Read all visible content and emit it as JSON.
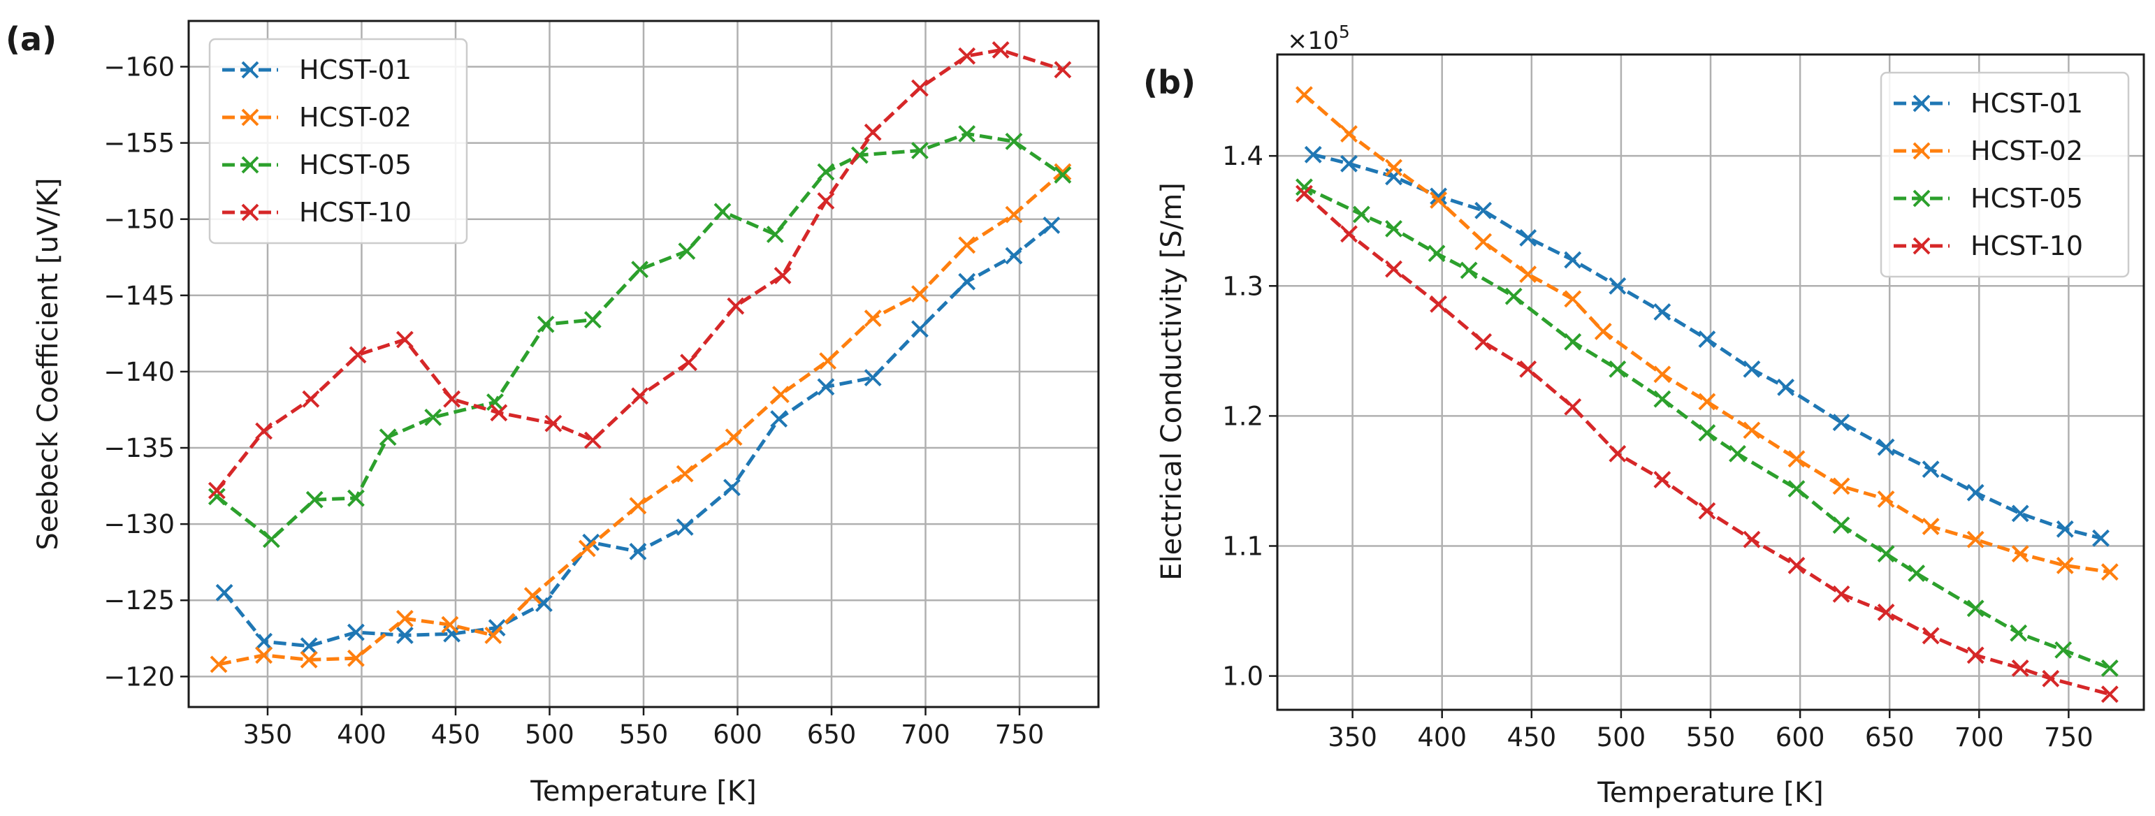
{
  "chart_data": [
    {
      "type": "line",
      "panel_label": "(a)",
      "xlabel": "Temperature [K]",
      "ylabel": "Seebeck Coefficient [uV/K]",
      "xlim": [
        308,
        792
      ],
      "ylim": [
        -118,
        -163
      ],
      "y_inverted": true,
      "xticks": [
        350,
        400,
        450,
        500,
        550,
        600,
        650,
        700,
        750
      ],
      "xtick_labels": [
        "350",
        "400",
        "450",
        "500",
        "550",
        "600",
        "650",
        "700",
        "750"
      ],
      "yticks": [
        -120,
        -125,
        -130,
        -135,
        -140,
        -145,
        -150,
        -155,
        -160
      ],
      "ytick_labels": [
        "−120",
        "−125",
        "−130",
        "−135",
        "−140",
        "−145",
        "−150",
        "−155",
        "−160"
      ],
      "grid": true,
      "legend_position": "top-left",
      "series": [
        {
          "name": "HCST-01",
          "color": "#1f77b4",
          "x": [
            327,
            348,
            372,
            397,
            423,
            448,
            472,
            497,
            522,
            547,
            572,
            597,
            622,
            647,
            672,
            697,
            722,
            747,
            767
          ],
          "y": [
            -125.5,
            -122.3,
            -122.0,
            -122.9,
            -122.7,
            -122.8,
            -123.2,
            -124.8,
            -128.8,
            -128.2,
            -129.8,
            -132.4,
            -136.9,
            -139.0,
            -139.6,
            -142.8,
            -145.9,
            -147.6,
            -149.6
          ]
        },
        {
          "name": "HCST-02",
          "color": "#ff7f0e",
          "x": [
            324,
            348,
            372,
            397,
            423,
            447,
            470,
            491,
            520,
            547,
            572,
            598,
            623,
            648,
            672,
            697,
            722,
            747,
            773
          ],
          "y": [
            -120.8,
            -121.4,
            -121.1,
            -121.2,
            -123.8,
            -123.4,
            -122.7,
            -125.3,
            -128.4,
            -131.2,
            -133.3,
            -135.7,
            -138.5,
            -140.7,
            -143.5,
            -145.1,
            -148.3,
            -150.3,
            -153.1
          ]
        },
        {
          "name": "HCST-05",
          "color": "#2ca02c",
          "x": [
            323,
            352,
            375,
            397,
            414,
            438,
            471,
            498,
            523,
            548,
            573,
            592,
            620,
            647,
            665,
            697,
            722,
            747,
            773
          ],
          "y": [
            -131.8,
            -129.0,
            -131.6,
            -131.7,
            -135.7,
            -137.0,
            -138.0,
            -143.1,
            -143.4,
            -146.7,
            -147.9,
            -150.5,
            -149.0,
            -153.1,
            -154.2,
            -154.5,
            -155.6,
            -155.1,
            -152.9
          ]
        },
        {
          "name": "HCST-10",
          "color": "#d62728",
          "x": [
            323,
            348,
            373,
            398,
            423,
            448,
            473,
            502,
            523,
            548,
            574,
            599,
            624,
            647,
            672,
            697,
            722,
            740,
            773
          ],
          "y": [
            -132.2,
            -136.1,
            -138.2,
            -141.1,
            -142.1,
            -138.2,
            -137.3,
            -136.6,
            -135.5,
            -138.4,
            -140.6,
            -144.3,
            -146.3,
            -151.2,
            -155.7,
            -158.6,
            -160.7,
            -161.1,
            -159.8
          ]
        }
      ]
    },
    {
      "type": "line",
      "panel_label": "(b)",
      "xlabel": "Temperature [K]",
      "ylabel": "Electrical Conductivity [S/m]",
      "scale_label": "×10",
      "scale_exponent": "5",
      "xlim": [
        308,
        792
      ],
      "ylim": [
        0.974,
        1.478
      ],
      "xticks": [
        350,
        400,
        450,
        500,
        550,
        600,
        650,
        700,
        750
      ],
      "xtick_labels": [
        "350",
        "400",
        "450",
        "500",
        "550",
        "600",
        "650",
        "700",
        "750"
      ],
      "yticks": [
        1.0,
        1.1,
        1.2,
        1.3,
        1.4
      ],
      "ytick_labels": [
        "1.0",
        "1.1",
        "1.2",
        "1.3",
        "1.4"
      ],
      "grid": true,
      "legend_position": "top-right",
      "series": [
        {
          "name": "HCST-01",
          "color": "#1f77b4",
          "x": [
            328,
            348,
            373,
            398,
            423,
            448,
            473,
            498,
            523,
            548,
            573,
            592,
            623,
            648,
            673,
            698,
            723,
            748,
            768
          ],
          "y": [
            1.401,
            1.394,
            1.384,
            1.369,
            1.358,
            1.337,
            1.32,
            1.3,
            1.28,
            1.259,
            1.236,
            1.222,
            1.195,
            1.176,
            1.159,
            1.141,
            1.125,
            1.113,
            1.106
          ]
        },
        {
          "name": "HCST-02",
          "color": "#ff7f0e",
          "x": [
            323,
            348,
            373,
            398,
            423,
            448,
            473,
            490,
            523,
            548,
            573,
            598,
            623,
            648,
            673,
            698,
            723,
            748,
            773
          ],
          "y": [
            1.447,
            1.417,
            1.391,
            1.366,
            1.334,
            1.309,
            1.29,
            1.265,
            1.232,
            1.211,
            1.189,
            1.167,
            1.146,
            1.136,
            1.115,
            1.105,
            1.094,
            1.085,
            1.08
          ]
        },
        {
          "name": "HCST-05",
          "color": "#2ca02c",
          "x": [
            323,
            355,
            373,
            397,
            415,
            440,
            473,
            498,
            523,
            548,
            565,
            598,
            623,
            648,
            665,
            698,
            722,
            747,
            773
          ],
          "y": [
            1.376,
            1.355,
            1.344,
            1.325,
            1.312,
            1.292,
            1.257,
            1.236,
            1.213,
            1.187,
            1.171,
            1.144,
            1.116,
            1.094,
            1.079,
            1.052,
            1.033,
            1.02,
            1.006
          ]
        },
        {
          "name": "HCST-10",
          "color": "#d62728",
          "x": [
            323,
            348,
            373,
            398,
            423,
            448,
            473,
            498,
            523,
            548,
            573,
            598,
            623,
            648,
            673,
            698,
            723,
            740,
            773
          ],
          "y": [
            1.371,
            1.34,
            1.313,
            1.286,
            1.257,
            1.236,
            1.207,
            1.171,
            1.151,
            1.127,
            1.105,
            1.085,
            1.063,
            1.049,
            1.031,
            1.016,
            1.006,
            0.998,
            0.986
          ]
        }
      ]
    }
  ]
}
